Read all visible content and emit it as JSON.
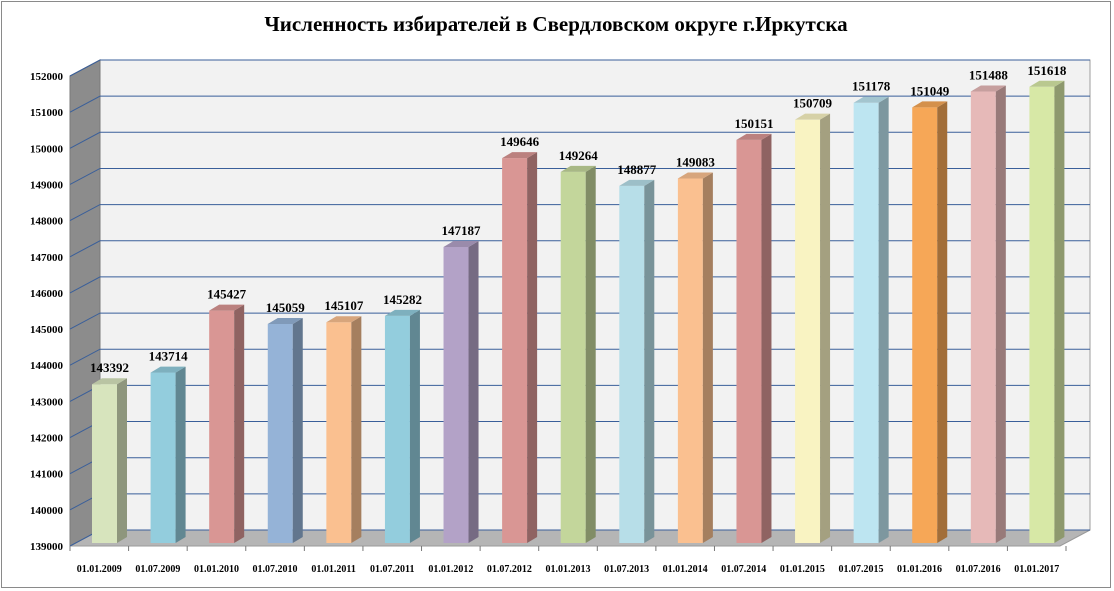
{
  "chart_data": {
    "type": "bar",
    "title": "Численность избирателей в Свердловском округе г.Иркутска",
    "xlabel": "",
    "ylabel": "",
    "ylim": [
      139000,
      152000
    ],
    "yticks": [
      "139000",
      "140000",
      "141000",
      "142000",
      "143000",
      "144000",
      "145000",
      "146000",
      "147000",
      "148000",
      "149000",
      "150000",
      "151000",
      "152000"
    ],
    "grid": true,
    "legend": "none",
    "style": "3d-column",
    "categories": [
      "01.01.2009",
      "01.07.2009",
      "01.01.2010",
      "01.07.2010",
      "01.01.2011",
      "01.07.2011",
      "01.01.2012",
      "01.07.2012",
      "01.01.2013",
      "01.07.2013",
      "01.01.2014",
      "01.07.2014",
      "01.01.2015",
      "01.07.2015",
      "01.01.2016",
      "01.07.2016",
      "01.01.2017"
    ],
    "values": [
      143392,
      143714,
      145427,
      145059,
      145107,
      145282,
      147187,
      149646,
      149264,
      148877,
      149083,
      150151,
      150709,
      151178,
      151049,
      151488,
      151618
    ],
    "colors": [
      "#d7e4bd",
      "#93cddd",
      "#d99694",
      "#95b3d7",
      "#fac090",
      "#93cddd",
      "#b3a2c7",
      "#d99694",
      "#c3d69b",
      "#b7dee8",
      "#fac090",
      "#d99694",
      "#f9f3c2",
      "#bde5f1",
      "#f6a757",
      "#e6b9b8",
      "#d7e8a6"
    ]
  }
}
